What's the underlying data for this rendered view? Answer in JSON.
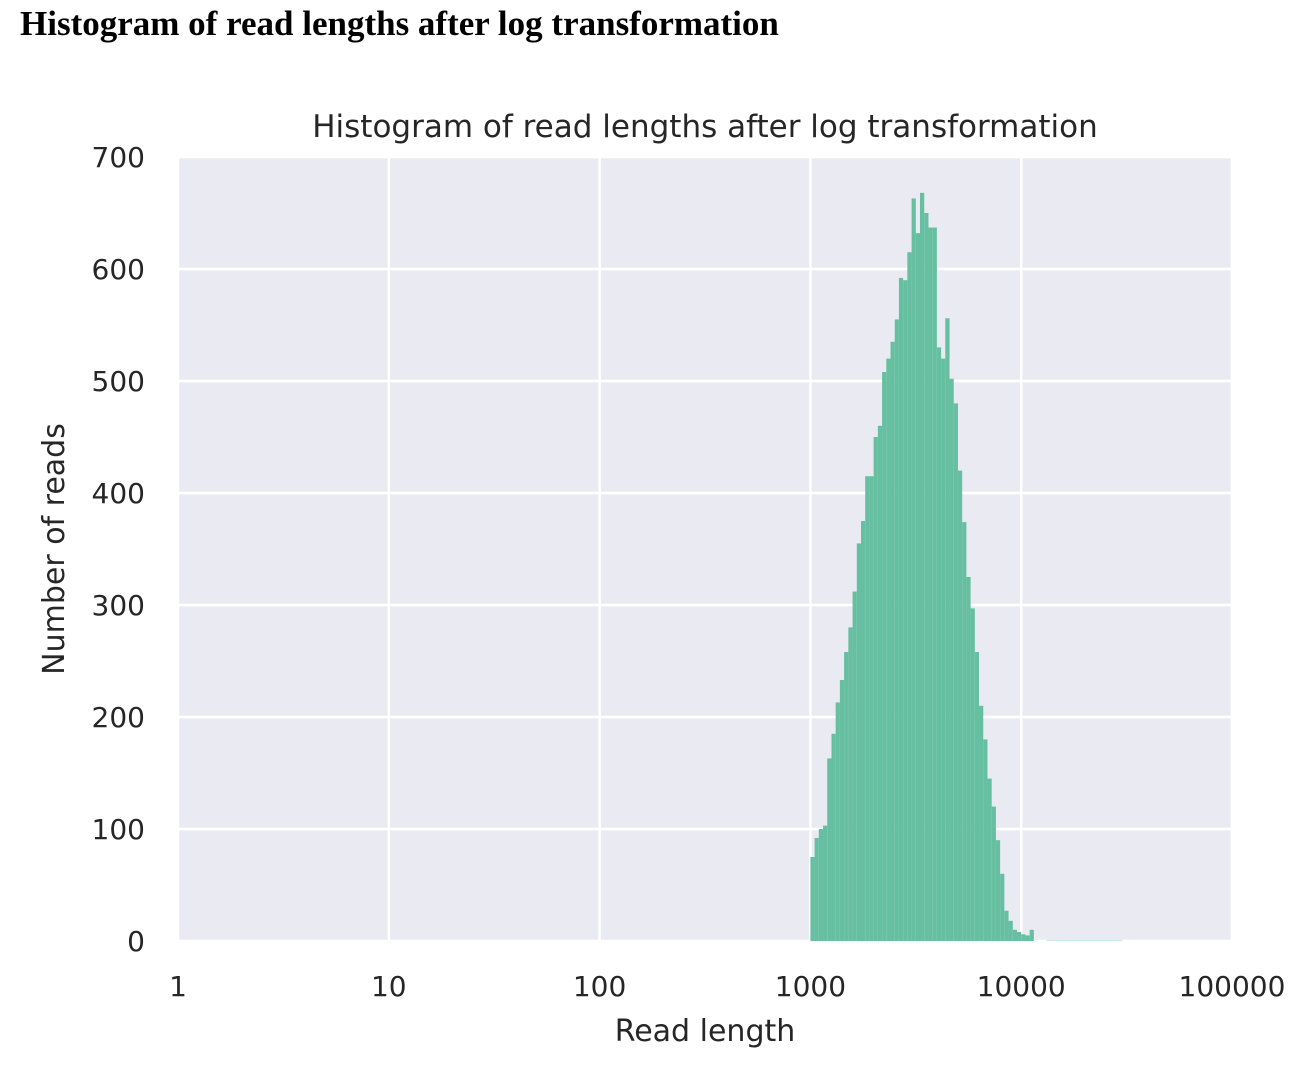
{
  "heading": "Histogram of read lengths after log transformation",
  "chart_data": {
    "type": "bar",
    "title": "Histogram of read lengths after log transformation",
    "xlabel": "Read length",
    "ylabel": "Number of reads",
    "x_scale": "log",
    "xlim": [
      1,
      100000
    ],
    "ylim": [
      0,
      700
    ],
    "xticks": [
      "1",
      "10",
      "100",
      "1000",
      "10000",
      "100000"
    ],
    "yticks": [
      "0",
      "100",
      "200",
      "300",
      "400",
      "500",
      "600",
      "700"
    ],
    "grid": true,
    "background_color": "#eaeaf2",
    "grid_color": "#ffffff",
    "bar_color": "#66bfa0",
    "bin_edges": [
      1000,
      1047,
      1096,
      1148,
      1202,
      1259,
      1318,
      1380,
      1445,
      1514,
      1585,
      1660,
      1738,
      1820,
      1905,
      1995,
      2089,
      2188,
      2291,
      2399,
      2512,
      2630,
      2754,
      2884,
      3020,
      3162,
      3311,
      3467,
      3631,
      3802,
      3981,
      4169,
      4365,
      4571,
      4786,
      5012,
      5248,
      5495,
      5754,
      6026,
      6310,
      6607,
      6918,
      7244,
      7586,
      7943,
      8318,
      8710,
      9120,
      9550,
      10000,
      10471,
      10965,
      11482,
      12023,
      12589,
      13183,
      13804,
      14454,
      15136,
      15849,
      16596,
      17378,
      18197,
      19055,
      19953,
      20893,
      21878,
      22909,
      23988,
      25119,
      26303,
      27542,
      28840,
      30200
    ],
    "counts": [
      75,
      92,
      100,
      103,
      163,
      185,
      213,
      233,
      258,
      280,
      312,
      355,
      375,
      415,
      415,
      450,
      460,
      508,
      520,
      535,
      555,
      592,
      590,
      615,
      663,
      632,
      668,
      650,
      637,
      637,
      530,
      520,
      556,
      502,
      480,
      420,
      374,
      325,
      297,
      258,
      210,
      180,
      145,
      120,
      90,
      60,
      27,
      18,
      10,
      8,
      6,
      5,
      10,
      0,
      0,
      0,
      1,
      1,
      1,
      1,
      1,
      1,
      1,
      1,
      1,
      1,
      1,
      1,
      1,
      1,
      1,
      1,
      1,
      1
    ]
  }
}
